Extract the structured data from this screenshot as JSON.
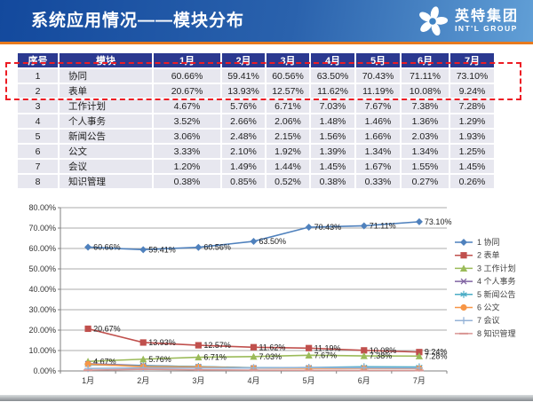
{
  "header": {
    "title": "系统应用情况——模块分布",
    "logo": {
      "icon": "pinwheel-icon",
      "cn": "英特集团",
      "en": "INT'L GROUP"
    }
  },
  "table": {
    "columns": [
      "序号",
      "模块",
      "1月",
      "2月",
      "3月",
      "4月",
      "5月",
      "6月",
      "7月"
    ],
    "rows": [
      {
        "no": "1",
        "module": "协同",
        "values": [
          "60.66%",
          "59.41%",
          "60.56%",
          "63.50%",
          "70.43%",
          "71.11%",
          "73.10%"
        ]
      },
      {
        "no": "2",
        "module": "表单",
        "values": [
          "20.67%",
          "13.93%",
          "12.57%",
          "11.62%",
          "11.19%",
          "10.08%",
          "9.24%"
        ]
      },
      {
        "no": "3",
        "module": "工作计划",
        "values": [
          "4.67%",
          "5.76%",
          "6.71%",
          "7.03%",
          "7.67%",
          "7.38%",
          "7.28%"
        ]
      },
      {
        "no": "4",
        "module": "个人事务",
        "values": [
          "3.52%",
          "2.66%",
          "2.06%",
          "1.48%",
          "1.46%",
          "1.36%",
          "1.29%"
        ]
      },
      {
        "no": "5",
        "module": "新闻公告",
        "values": [
          "3.06%",
          "2.48%",
          "2.15%",
          "1.56%",
          "1.66%",
          "2.03%",
          "1.93%"
        ]
      },
      {
        "no": "6",
        "module": "公文",
        "values": [
          "3.33%",
          "2.10%",
          "1.92%",
          "1.39%",
          "1.34%",
          "1.34%",
          "1.25%"
        ]
      },
      {
        "no": "7",
        "module": "会议",
        "values": [
          "1.20%",
          "1.49%",
          "1.44%",
          "1.45%",
          "1.67%",
          "1.55%",
          "1.45%"
        ]
      },
      {
        "no": "8",
        "module": "知识管理",
        "values": [
          "0.38%",
          "0.85%",
          "0.52%",
          "0.38%",
          "0.33%",
          "0.27%",
          "0.26%"
        ]
      }
    ],
    "highlighted_rows": [
      1,
      2
    ]
  },
  "chart_data": {
    "type": "line",
    "categories": [
      "1月",
      "2月",
      "3月",
      "4月",
      "5月",
      "6月",
      "7月"
    ],
    "ylim": [
      0,
      80
    ],
    "y_tick_step": 10,
    "y_tick_labels": [
      "0.00%",
      "10.00%",
      "20.00%",
      "30.00%",
      "40.00%",
      "50.00%",
      "60.00%",
      "70.00%",
      "80.00%"
    ],
    "grid": true,
    "legend_position": "right",
    "series": [
      {
        "name": "1 协同",
        "color": "#4f81bd",
        "marker": "diamond",
        "show_labels": true,
        "values": [
          60.66,
          59.41,
          60.56,
          63.5,
          70.43,
          71.11,
          73.1
        ]
      },
      {
        "name": "2 表单",
        "color": "#c0504d",
        "marker": "square",
        "show_labels": true,
        "values": [
          20.67,
          13.93,
          12.57,
          11.62,
          11.19,
          10.08,
          9.24
        ]
      },
      {
        "name": "3 工作计划",
        "color": "#9bbb59",
        "marker": "triangle",
        "show_labels": true,
        "values": [
          4.67,
          5.76,
          6.71,
          7.03,
          7.67,
          7.38,
          7.28
        ]
      },
      {
        "name": "4 个人事务",
        "color": "#8064a2",
        "marker": "x",
        "show_labels": false,
        "values": [
          3.52,
          2.66,
          2.06,
          1.48,
          1.46,
          1.36,
          1.29
        ]
      },
      {
        "name": "5 新闻公告",
        "color": "#4bacc6",
        "marker": "asterisk",
        "show_labels": false,
        "values": [
          3.06,
          2.48,
          2.15,
          1.56,
          1.66,
          2.03,
          1.93
        ]
      },
      {
        "name": "6 公文",
        "color": "#f79646",
        "marker": "circle",
        "show_labels": false,
        "values": [
          3.33,
          2.1,
          1.92,
          1.39,
          1.34,
          1.34,
          1.25
        ]
      },
      {
        "name": "7 会议",
        "color": "#95b3d7",
        "marker": "plus",
        "show_labels": false,
        "values": [
          1.2,
          1.49,
          1.44,
          1.45,
          1.67,
          1.55,
          1.45
        ]
      },
      {
        "name": "8 知识管理",
        "color": "#d99694",
        "marker": "dash",
        "show_labels": false,
        "values": [
          0.38,
          0.85,
          0.52,
          0.38,
          0.33,
          0.27,
          0.26
        ]
      }
    ]
  },
  "colors": {
    "header_gradient_left": "#13499d",
    "header_gradient_right": "#619fd6",
    "accent_orange": "#e87a1e",
    "table_header_bg": "#2b3990",
    "table_row_bg": "#e7e7ef",
    "highlight_dash": "#ed1c24",
    "axis": "#808080",
    "gridline": "#ababab"
  }
}
